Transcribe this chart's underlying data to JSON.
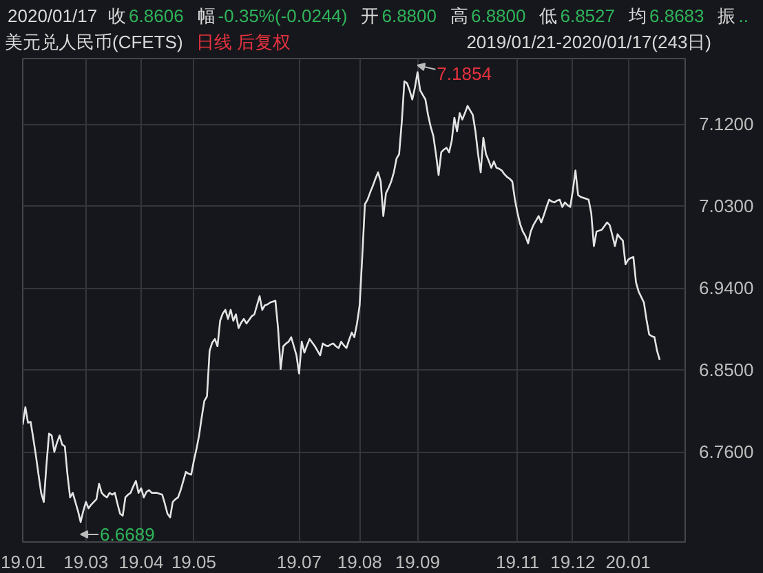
{
  "chart_data": {
    "type": "line",
    "title": "美元兑人民币(CFETS)",
    "subtitle": "日线 后复权",
    "annotations": [
      "2020/01/17",
      "收",
      "6.8606",
      "幅",
      "-0.35%(-0.0244)",
      "开",
      "6.8800",
      "高",
      "6.8800",
      "低",
      "6.8527",
      "均",
      "6.8683",
      "振",
      "..",
      "2019/01/21-2020/01/17(243日)",
      "7.1854",
      "6.6689"
    ],
    "categories": [
      "19.01",
      null,
      null,
      null,
      null,
      null,
      null,
      null,
      null,
      null,
      null,
      null,
      null,
      null,
      null,
      null,
      null,
      null,
      null,
      null,
      null,
      null,
      null,
      null,
      "19.03",
      null,
      null,
      null,
      null,
      null,
      null,
      null,
      null,
      null,
      null,
      null,
      null,
      null,
      null,
      null,
      null,
      null,
      null,
      null,
      null,
      "19.04",
      null,
      null,
      null,
      null,
      null,
      null,
      null,
      null,
      null,
      null,
      null,
      null,
      null,
      null,
      null,
      null,
      null,
      null,
      null,
      "19.05",
      null,
      null,
      null,
      null,
      null,
      null,
      null,
      null,
      null,
      null,
      null,
      null,
      null,
      null,
      null,
      null,
      null,
      null,
      null,
      null,
      null,
      null,
      null,
      null,
      null,
      null,
      null,
      null,
      null,
      null,
      null,
      null,
      null,
      null,
      null,
      null,
      null,
      null,
      null,
      "19.07",
      null,
      null,
      null,
      null,
      null,
      null,
      null,
      null,
      null,
      null,
      null,
      null,
      null,
      null,
      null,
      null,
      null,
      null,
      null,
      null,
      null,
      null,
      "19.08",
      null,
      null,
      null,
      null,
      null,
      null,
      null,
      null,
      null,
      null,
      null,
      null,
      null,
      null,
      null,
      null,
      null,
      null,
      null,
      null,
      null,
      "19.09",
      null,
      null,
      null,
      null,
      null,
      null,
      null,
      null,
      null,
      null,
      null,
      null,
      null,
      null,
      null,
      null,
      null,
      null,
      null,
      null,
      null,
      null,
      null,
      null,
      null,
      null,
      null,
      null,
      null,
      null,
      null,
      null,
      null,
      null,
      null,
      null,
      null,
      "19.11",
      null,
      null,
      null,
      null,
      null,
      null,
      null,
      null,
      null,
      null,
      null,
      null,
      null,
      null,
      null,
      null,
      null,
      null,
      null,
      null,
      "19.12",
      null,
      null,
      null,
      null,
      null,
      null,
      null,
      null,
      null,
      null,
      null,
      null,
      null,
      null,
      null,
      null,
      null,
      null,
      null,
      null,
      "20.01",
      null,
      null,
      null,
      null,
      null,
      null,
      null,
      null,
      null,
      null,
      null,
      null
    ],
    "series": [
      {
        "color": "#e4e4e4",
        "values": [
          6.79,
          6.809,
          6.792,
          6.793,
          6.775,
          6.756,
          6.735,
          6.715,
          6.705,
          6.745,
          6.78,
          6.778,
          6.76,
          6.77,
          6.778,
          6.768,
          6.766,
          6.735,
          6.71,
          6.715,
          6.705,
          6.695,
          6.683,
          6.695,
          6.705,
          6.698,
          6.702,
          6.705,
          6.708,
          6.725,
          6.715,
          6.712,
          6.71,
          6.715,
          6.713,
          6.715,
          6.703,
          6.692,
          6.69,
          6.71,
          6.713,
          6.715,
          6.722,
          6.728,
          6.715,
          6.72,
          6.71,
          6.716,
          6.718,
          6.715,
          6.715,
          6.715,
          6.714,
          6.713,
          6.703,
          6.692,
          6.688,
          6.705,
          6.708,
          6.71,
          6.718,
          6.728,
          6.738,
          6.736,
          6.735,
          6.75,
          6.763,
          6.778,
          6.798,
          6.816,
          6.821,
          6.871,
          6.88,
          6.884,
          6.876,
          6.904,
          6.912,
          6.916,
          6.906,
          6.916,
          6.904,
          6.911,
          6.896,
          6.902,
          6.906,
          6.901,
          6.905,
          6.909,
          6.911,
          6.921,
          6.931,
          6.916,
          6.921,
          6.922,
          6.924,
          6.925,
          6.926,
          6.896,
          6.851,
          6.876,
          6.879,
          6.881,
          6.886,
          6.876,
          6.866,
          6.846,
          6.881,
          6.869,
          6.877,
          6.884,
          6.88,
          6.876,
          6.871,
          6.866,
          6.879,
          6.877,
          6.876,
          6.878,
          6.879,
          6.876,
          6.874,
          6.881,
          6.877,
          6.874,
          6.883,
          6.891,
          6.886,
          6.901,
          6.921,
          6.975,
          7.032,
          7.037,
          7.045,
          7.052,
          7.06,
          7.067,
          7.057,
          7.019,
          7.044,
          7.05,
          7.057,
          7.067,
          7.082,
          7.087,
          7.122,
          7.167,
          7.165,
          7.157,
          7.147,
          7.16,
          7.177,
          7.157,
          7.152,
          7.147,
          7.13,
          7.117,
          7.107,
          7.087,
          7.064,
          7.089,
          7.092,
          7.094,
          7.089,
          7.102,
          7.127,
          7.112,
          7.132,
          7.125,
          7.132,
          7.14,
          7.135,
          7.13,
          7.112,
          7.087,
          7.067,
          7.105,
          7.087,
          7.08,
          7.072,
          7.079,
          7.072,
          7.071,
          7.069,
          7.065,
          7.062,
          7.06,
          7.057,
          7.037,
          7.022,
          7.01,
          7.002,
          6.997,
          6.989,
          7.002,
          7.009,
          7.014,
          7.019,
          7.012,
          7.02,
          7.029,
          7.037,
          7.035,
          7.034,
          7.036,
          7.037,
          7.029,
          7.034,
          7.031,
          7.029,
          7.047,
          7.069,
          7.042,
          7.04,
          7.039,
          7.038,
          7.037,
          7.022,
          6.986,
          7.002,
          7.003,
          7.004,
          7.008,
          7.012,
          7.009,
          6.998,
          6.986,
          6.999,
          6.995,
          6.992,
          6.966,
          6.971,
          6.973,
          6.974,
          6.946,
          6.936,
          6.93,
          6.924,
          6.905,
          6.889,
          6.887,
          6.886,
          6.871,
          6.861
        ]
      }
    ],
    "ylim": [
      6.661,
      7.192
    ],
    "yticks": [
      {
        "value": 6.76,
        "label": "6.7600"
      },
      {
        "value": 6.85,
        "label": "6.8500"
      },
      {
        "value": 6.94,
        "label": "6.9400"
      },
      {
        "value": 7.03,
        "label": "7.0300"
      },
      {
        "value": 7.12,
        "label": "7.1200"
      }
    ],
    "grid": true
  }
}
